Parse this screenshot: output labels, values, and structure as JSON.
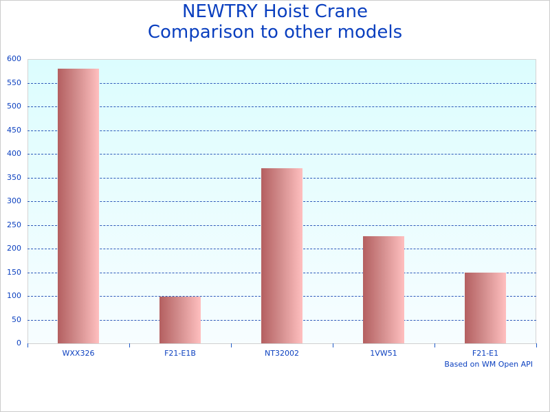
{
  "chart_data": {
    "type": "bar",
    "title": "NEWTRY Hoist Crane\nComparison to other models",
    "title_lines": [
      "NEWTRY Hoist Crane",
      "Comparison to other models"
    ],
    "categories": [
      "WXX326",
      "F21-E1B",
      "NT32002",
      "1VW51",
      "F21-E1"
    ],
    "values": [
      580,
      98,
      370,
      226,
      149
    ],
    "xlabel": "",
    "ylabel": "",
    "ylim": [
      0,
      600
    ],
    "yticks": [
      0,
      50,
      100,
      150,
      200,
      250,
      300,
      350,
      400,
      450,
      500,
      550,
      600
    ],
    "grid": true,
    "legend": null,
    "annotation": "Based on WM Open API"
  },
  "colors": {
    "title": "#0a3fbf",
    "bar_dark": "#b45f60",
    "bar_light": "#ffbfbf",
    "grid": "#2a56b8",
    "plot_bg_top": "#dcfdfe",
    "plot_bg_bottom": "#f7fdff"
  }
}
